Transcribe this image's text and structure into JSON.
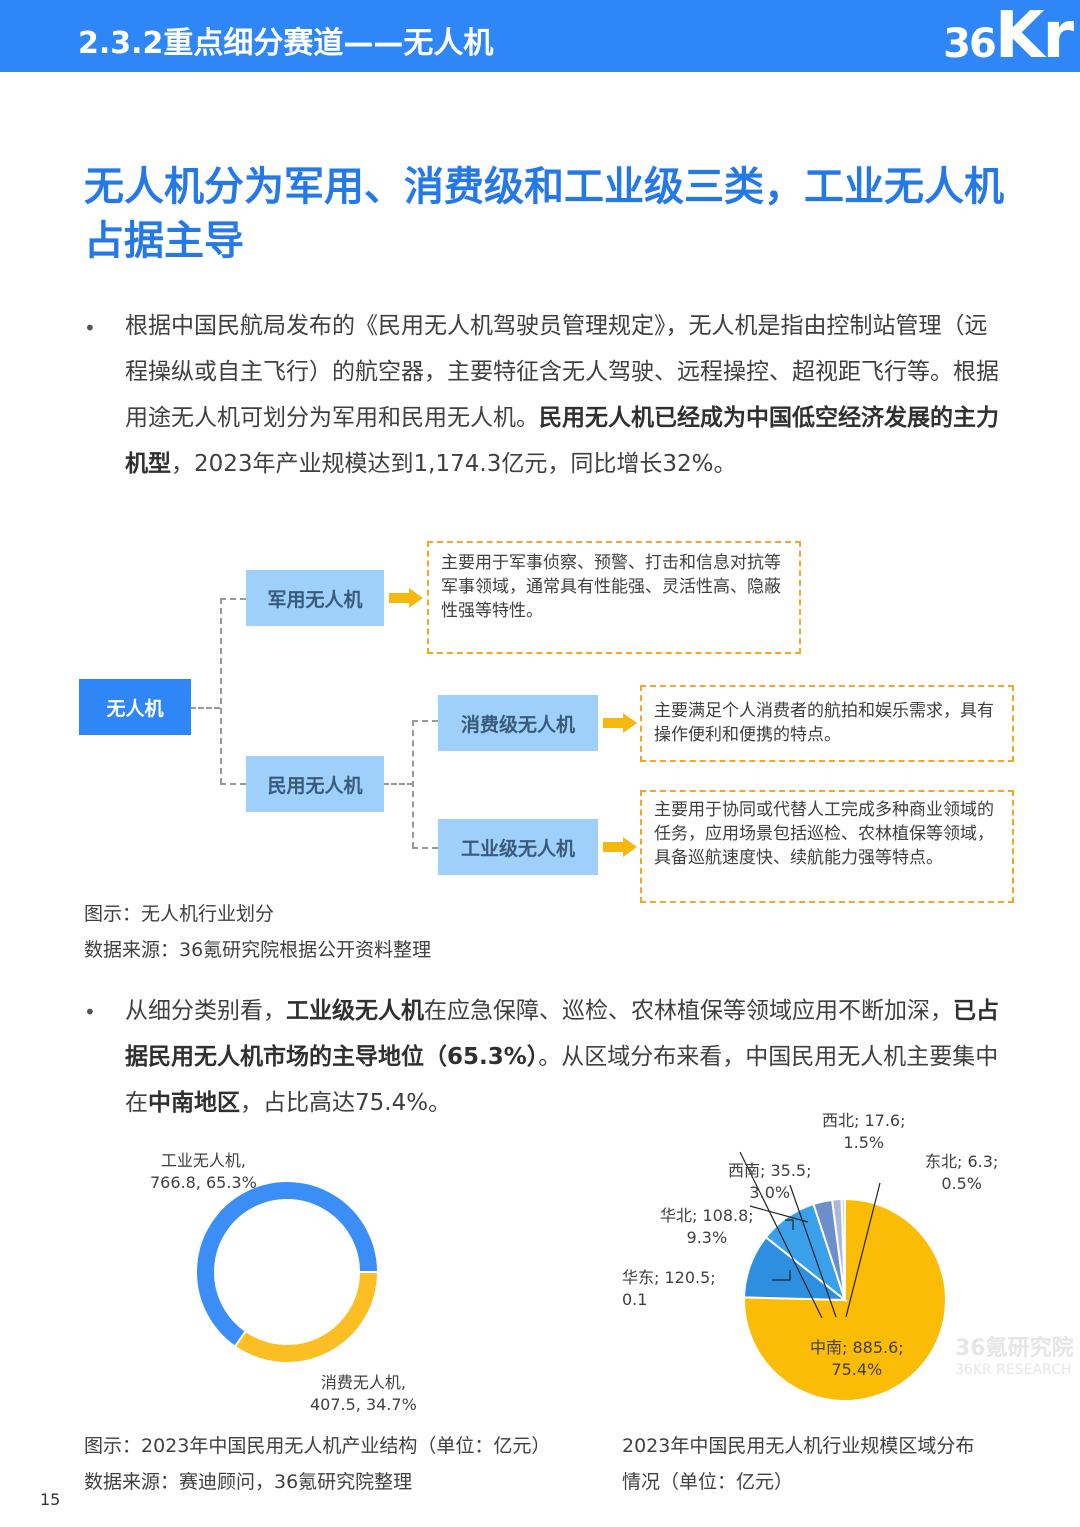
{
  "header": {
    "title": "2.3.2重点细分赛道——无人机",
    "logo": "36Kr"
  },
  "headline": "无人机分为军用、消费级和工业级三类，工业无人机占据主导",
  "para1": {
    "bullet": "•",
    "t1": "根据中国民航局发布的《民用无人机驾驶员管理规定》，无人机是指由控制站管理（远程操纵或自主飞行）的航空器，主要特征含无人驾驶、远程操控、超视距飞行等。根据用途无人机可划分为军用和民用无人机。",
    "b1": "民用无人机已经成为中国低空经济发展的主力机型",
    "t2": "，2023年产业规模达到1,174.3亿元，同比增长32%。"
  },
  "diagram": {
    "root": "无人机",
    "military": "军用无人机",
    "civil": "民用无人机",
    "consumer": "消费级无人机",
    "industrial": "工业级无人机",
    "military_desc": "主要用于军事侦察、预警、打击和信息对抗等军事领域，通常具有性能强、灵活性高、隐蔽性强等特性。",
    "consumer_desc": "主要满足个人消费者的航拍和娱乐需求，具有操作便利和便携的特点。",
    "industrial_desc": "主要用于协同或代替人工完成多种商业领域的任务，应用场景包括巡检、农林植保等领域，具备巡航速度快、续航能力强等特点。",
    "caption": "图示：无人机行业划分",
    "source": "数据来源：36氪研究院根据公开资料整理"
  },
  "para2": {
    "bullet": "•",
    "t1": "从细分类别看，",
    "b1": "工业级无人机",
    "t2": "在应急保障、巡检、农林植保等领域应用不断加深，",
    "b2": "已占据民用无人机市场的主导地位（65.3%）",
    "t3": "。从区域分布来看，中国民用无人机主要集中在",
    "b3": "中南地区",
    "t4": "，占比高达75.4%。"
  },
  "chart_data": [
    {
      "type": "pie",
      "donut": true,
      "title": "图示：2023年中国民用无人机产业结构（单位：亿元）",
      "categories": [
        "工业无人机",
        "消费无人机"
      ],
      "values": [
        766.8,
        407.5
      ],
      "percent_labels": [
        "65.3%",
        "34.7%"
      ],
      "colors": [
        "#3a8ef6",
        "#fbbf24"
      ],
      "labels": [
        "工业无人机,\n766.8, 65.3%",
        "消费无人机,\n407.5, 34.7%"
      ]
    },
    {
      "type": "pie",
      "title": "2023年中国民用无人机行业规模区域分布情况（单位：亿元）",
      "categories": [
        "中南",
        "华东",
        "华北",
        "西南",
        "西北",
        "东北"
      ],
      "values": [
        885.6,
        120.5,
        108.8,
        35.5,
        17.6,
        6.3
      ],
      "colors": [
        "#fbbc05",
        "#2d8fe0",
        "#3aa0ea",
        "#6d8fc9",
        "#a9b8dc",
        "#c7d3ea"
      ],
      "labels": [
        "中南; 885.6;\n75.4%",
        "华东; 120.5;\n0.1",
        "华北; 108.8;\n9.3%",
        "西南; 35.5;\n3.0%",
        "西北; 17.6;\n1.5%",
        "东北; 6.3;\n0.5%"
      ]
    }
  ],
  "chart_source": "数据来源：赛迪顾问，36氪研究院整理",
  "watermark": {
    "cn": "36氪研究院",
    "en": "36KR RESEARCH"
  },
  "page_number": "15"
}
